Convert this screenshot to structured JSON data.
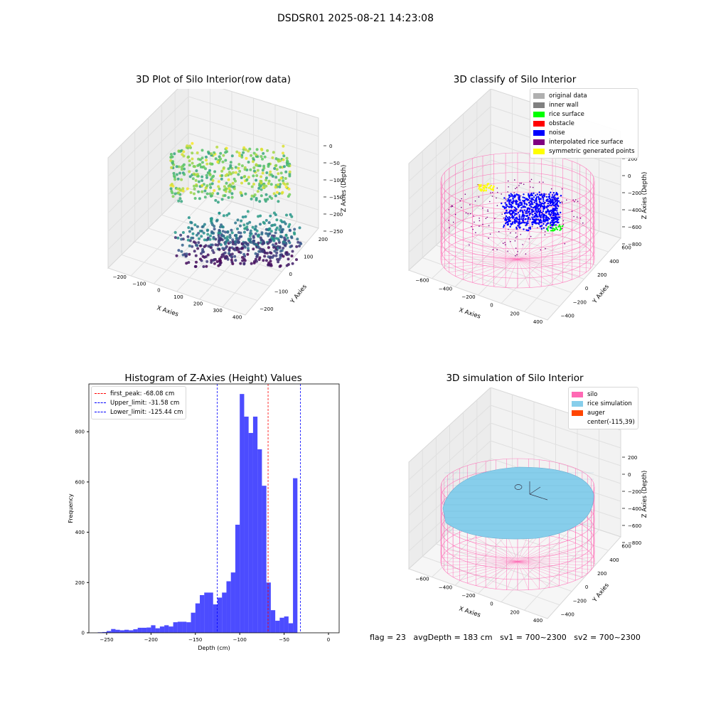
{
  "figure": {
    "suptitle": "DSDSR01 2025-08-21 14:23:08",
    "status": {
      "flag": "flag = 23",
      "avgDepth": "avgDepth = 183 cm",
      "sv1": "sv1 = 700~2300",
      "sv2": "sv2 = 700~2300"
    }
  },
  "chart_data": [
    {
      "type": "scatter",
      "subtype": "3d",
      "title": "3D Plot of Silo Interior(row data)",
      "xlabel": "X Axies",
      "ylabel": "Y Axies",
      "zlabel": "Z Axies (Depth)",
      "x_ticks": [
        "−200",
        "−100",
        "0",
        "100",
        "200",
        "300",
        "400"
      ],
      "y_ticks": [
        "−200",
        "−100",
        "0",
        "100",
        "200"
      ],
      "z_ticks": [
        "0",
        "−50",
        "−100",
        "−150",
        "−200",
        "−250"
      ],
      "colormap": "viridis",
      "description_points": "about 1500 points, depth 0 to −260, colored by depth"
    },
    {
      "type": "scatter",
      "subtype": "3d",
      "title": "3D classify of Silo Interior",
      "xlabel": "X Axies",
      "ylabel": "Y Axies",
      "zlabel": "Z Axies (Depth)",
      "x_ticks": [
        "−600",
        "−400",
        "−200",
        "0",
        "200",
        "400"
      ],
      "y_ticks": [
        "−400",
        "−200",
        "0",
        "200",
        "400",
        "600"
      ],
      "z_ticks": [
        "200",
        "0",
        "−200",
        "−400",
        "−600",
        "−800"
      ],
      "legend": [
        {
          "label": "original data",
          "color": "#b0b0b0"
        },
        {
          "label": "inner wall",
          "color": "#808080"
        },
        {
          "label": "rice surface",
          "color": "#00ff00"
        },
        {
          "label": "obstacle",
          "color": "#ff0000"
        },
        {
          "label": "noise",
          "color": "#0000ff"
        },
        {
          "label": "interpolated rice surface",
          "color": "#800080"
        },
        {
          "label": "symmetric generated points",
          "color": "#ffff00"
        }
      ]
    },
    {
      "type": "bar",
      "subtype": "histogram",
      "title": "Histogram of Z-Axies (Height) Values",
      "xlabel": "Depth (cm)",
      "ylabel": "Frequency",
      "xlim": [
        -270,
        12
      ],
      "ylim": [
        0,
        990
      ],
      "x_ticks": [
        -250,
        -200,
        -150,
        -100,
        -50,
        0
      ],
      "y_ticks": [
        0,
        200,
        400,
        600,
        800
      ],
      "bin_width": 5,
      "bin_start": -260,
      "values": [
        2,
        3,
        7,
        15,
        12,
        10,
        12,
        10,
        14,
        20,
        20,
        21,
        30,
        18,
        25,
        30,
        25,
        42,
        44,
        44,
        42,
        80,
        117,
        150,
        160,
        160,
        113,
        140,
        160,
        205,
        240,
        430,
        950,
        860,
        795,
        860,
        730,
        585,
        200,
        90,
        48,
        60,
        65,
        38,
        615
      ],
      "bar_color": "#0000ff",
      "lines": [
        {
          "label": "first_peak: -68.08 cm",
          "x": -68.08,
          "color": "#ff0000"
        },
        {
          "label": "Upper_limit: -31.58 cm",
          "x": -31.58,
          "color": "#0000ff"
        },
        {
          "label": "Lower_limit: -125.44 cm",
          "x": -125.44,
          "color": "#0000ff"
        }
      ],
      "legend_position": "top-left"
    },
    {
      "type": "surface",
      "subtype": "3d",
      "title": "3D simulation of Silo Interior",
      "xlabel": "X Axies",
      "ylabel": "Y Axies",
      "zlabel": "Z Axies (Depth)",
      "x_ticks": [
        "−600",
        "−400",
        "−200",
        "0",
        "200",
        "400"
      ],
      "y_ticks": [
        "−400",
        "−200",
        "0",
        "200",
        "400",
        "600"
      ],
      "z_ticks": [
        "200",
        "0",
        "−200",
        "−400",
        "−600",
        "−800"
      ],
      "legend": [
        {
          "label": "silo",
          "color": "#ff69b4"
        },
        {
          "label": "rice simulation",
          "color": "#87ceeb"
        },
        {
          "label": "auger",
          "color": "#ff4500"
        },
        {
          "label": "center(-115,39)",
          "color": ""
        }
      ]
    }
  ]
}
